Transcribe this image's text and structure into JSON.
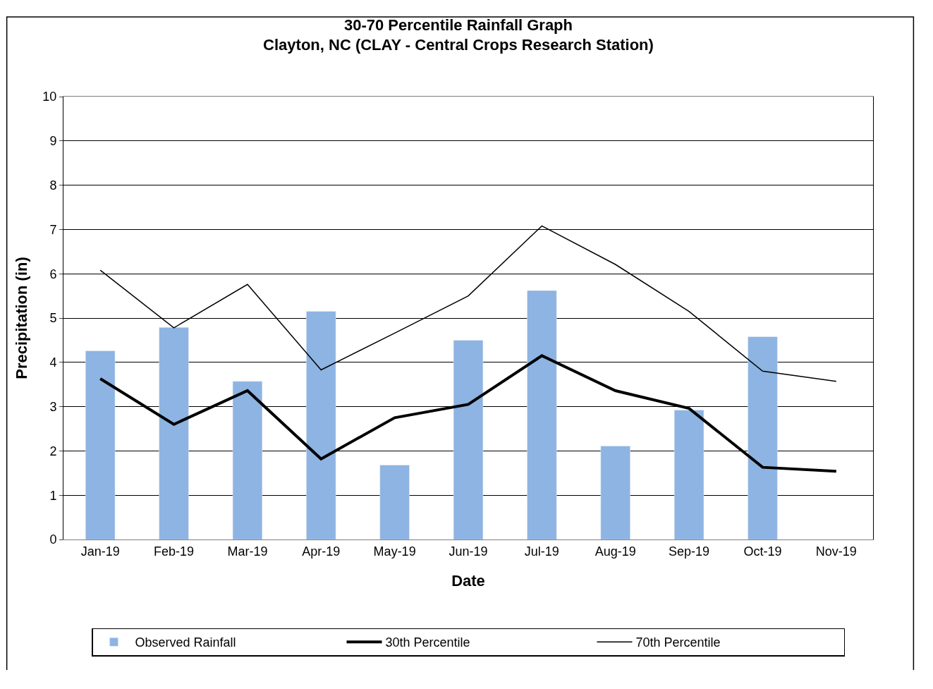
{
  "chart_data": {
    "type": "bar",
    "title": "30-70 Percentile Rainfall Graph",
    "subtitle": "Clayton, NC (CLAY - Central Crops Research Station)",
    "xlabel": "Date",
    "ylabel": "Precipitation (in)",
    "categories": [
      "Jan-19",
      "Feb-19",
      "Mar-19",
      "Apr-19",
      "May-19",
      "Jun-19",
      "Jul-19",
      "Aug-19",
      "Sep-19",
      "Oct-19",
      "Nov-19"
    ],
    "series": [
      {
        "name": "Observed Rainfall",
        "color": "#8db4e2",
        "values": [
          4.26,
          4.79,
          3.57,
          5.15,
          1.68,
          4.5,
          5.62,
          2.11,
          2.92,
          4.58,
          null
        ]
      },
      {
        "name": "30th Percentile",
        "type": "line",
        "color": "#000000",
        "values": [
          3.63,
          2.6,
          3.36,
          1.82,
          2.75,
          3.05,
          4.15,
          3.36,
          2.96,
          1.63,
          1.54
        ]
      },
      {
        "name": "70th Percentile",
        "type": "line",
        "color": "#000000",
        "values": [
          6.08,
          4.78,
          5.76,
          3.83,
          4.66,
          5.5,
          7.08,
          6.21,
          5.15,
          3.8,
          3.57
        ]
      }
    ],
    "ylim": [
      0,
      10
    ],
    "yticks": [
      0,
      1,
      2,
      3,
      4,
      5,
      6,
      7,
      8,
      9,
      10
    ],
    "grid": "y",
    "legend": "bottom",
    "marker": "none",
    "line_style": "solid"
  }
}
